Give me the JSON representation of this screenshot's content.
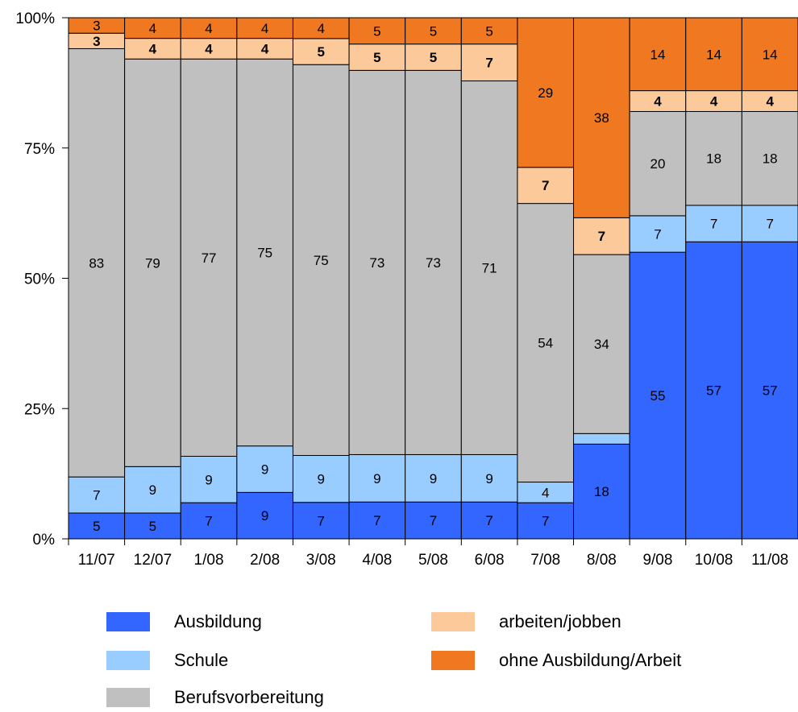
{
  "chart_data": {
    "type": "bar",
    "stacked": "percent",
    "categories": [
      "11/07",
      "12/07",
      "1/08",
      "2/08",
      "3/08",
      "4/08",
      "5/08",
      "6/08",
      "7/08",
      "8/08",
      "9/08",
      "10/08",
      "11/08"
    ],
    "series": [
      {
        "name": "Ausbildung",
        "color": "#3366ff",
        "bold_labels": false,
        "values": [
          5,
          5,
          7,
          9,
          7,
          7,
          7,
          7,
          7,
          18,
          55,
          57,
          57
        ]
      },
      {
        "name": "Schule",
        "color": "#99ccff",
        "bold_labels": false,
        "values": [
          7,
          9,
          9,
          9,
          9,
          9,
          9,
          9,
          4,
          2,
          7,
          7,
          7
        ],
        "labels": [
          "7",
          "9",
          "9",
          "9",
          "9",
          "9",
          "9",
          "9",
          "4",
          "",
          "7",
          "7",
          "7"
        ]
      },
      {
        "name": "Berufsvorbereitung",
        "color": "#c0c0c0",
        "bold_labels": false,
        "values": [
          83,
          79,
          77,
          75,
          75,
          73,
          73,
          71,
          54,
          34,
          20,
          18,
          18
        ]
      },
      {
        "name": "arbeiten/jobben",
        "color": "#fcc99a",
        "bold_labels": true,
        "values": [
          3,
          4,
          4,
          4,
          5,
          5,
          5,
          7,
          7,
          7,
          4,
          4,
          4
        ]
      },
      {
        "name": "ohne Ausbildung/Arbeit",
        "color": "#f07820",
        "bold_labels": false,
        "values": [
          3,
          4,
          4,
          4,
          4,
          5,
          5,
          5,
          29,
          38,
          14,
          14,
          14
        ]
      }
    ],
    "ytick_labels": [
      "0%",
      "25%",
      "50%",
      "75%",
      "100%"
    ],
    "ylim": [
      0,
      100
    ],
    "grid": false,
    "legend_position": "bottom"
  }
}
